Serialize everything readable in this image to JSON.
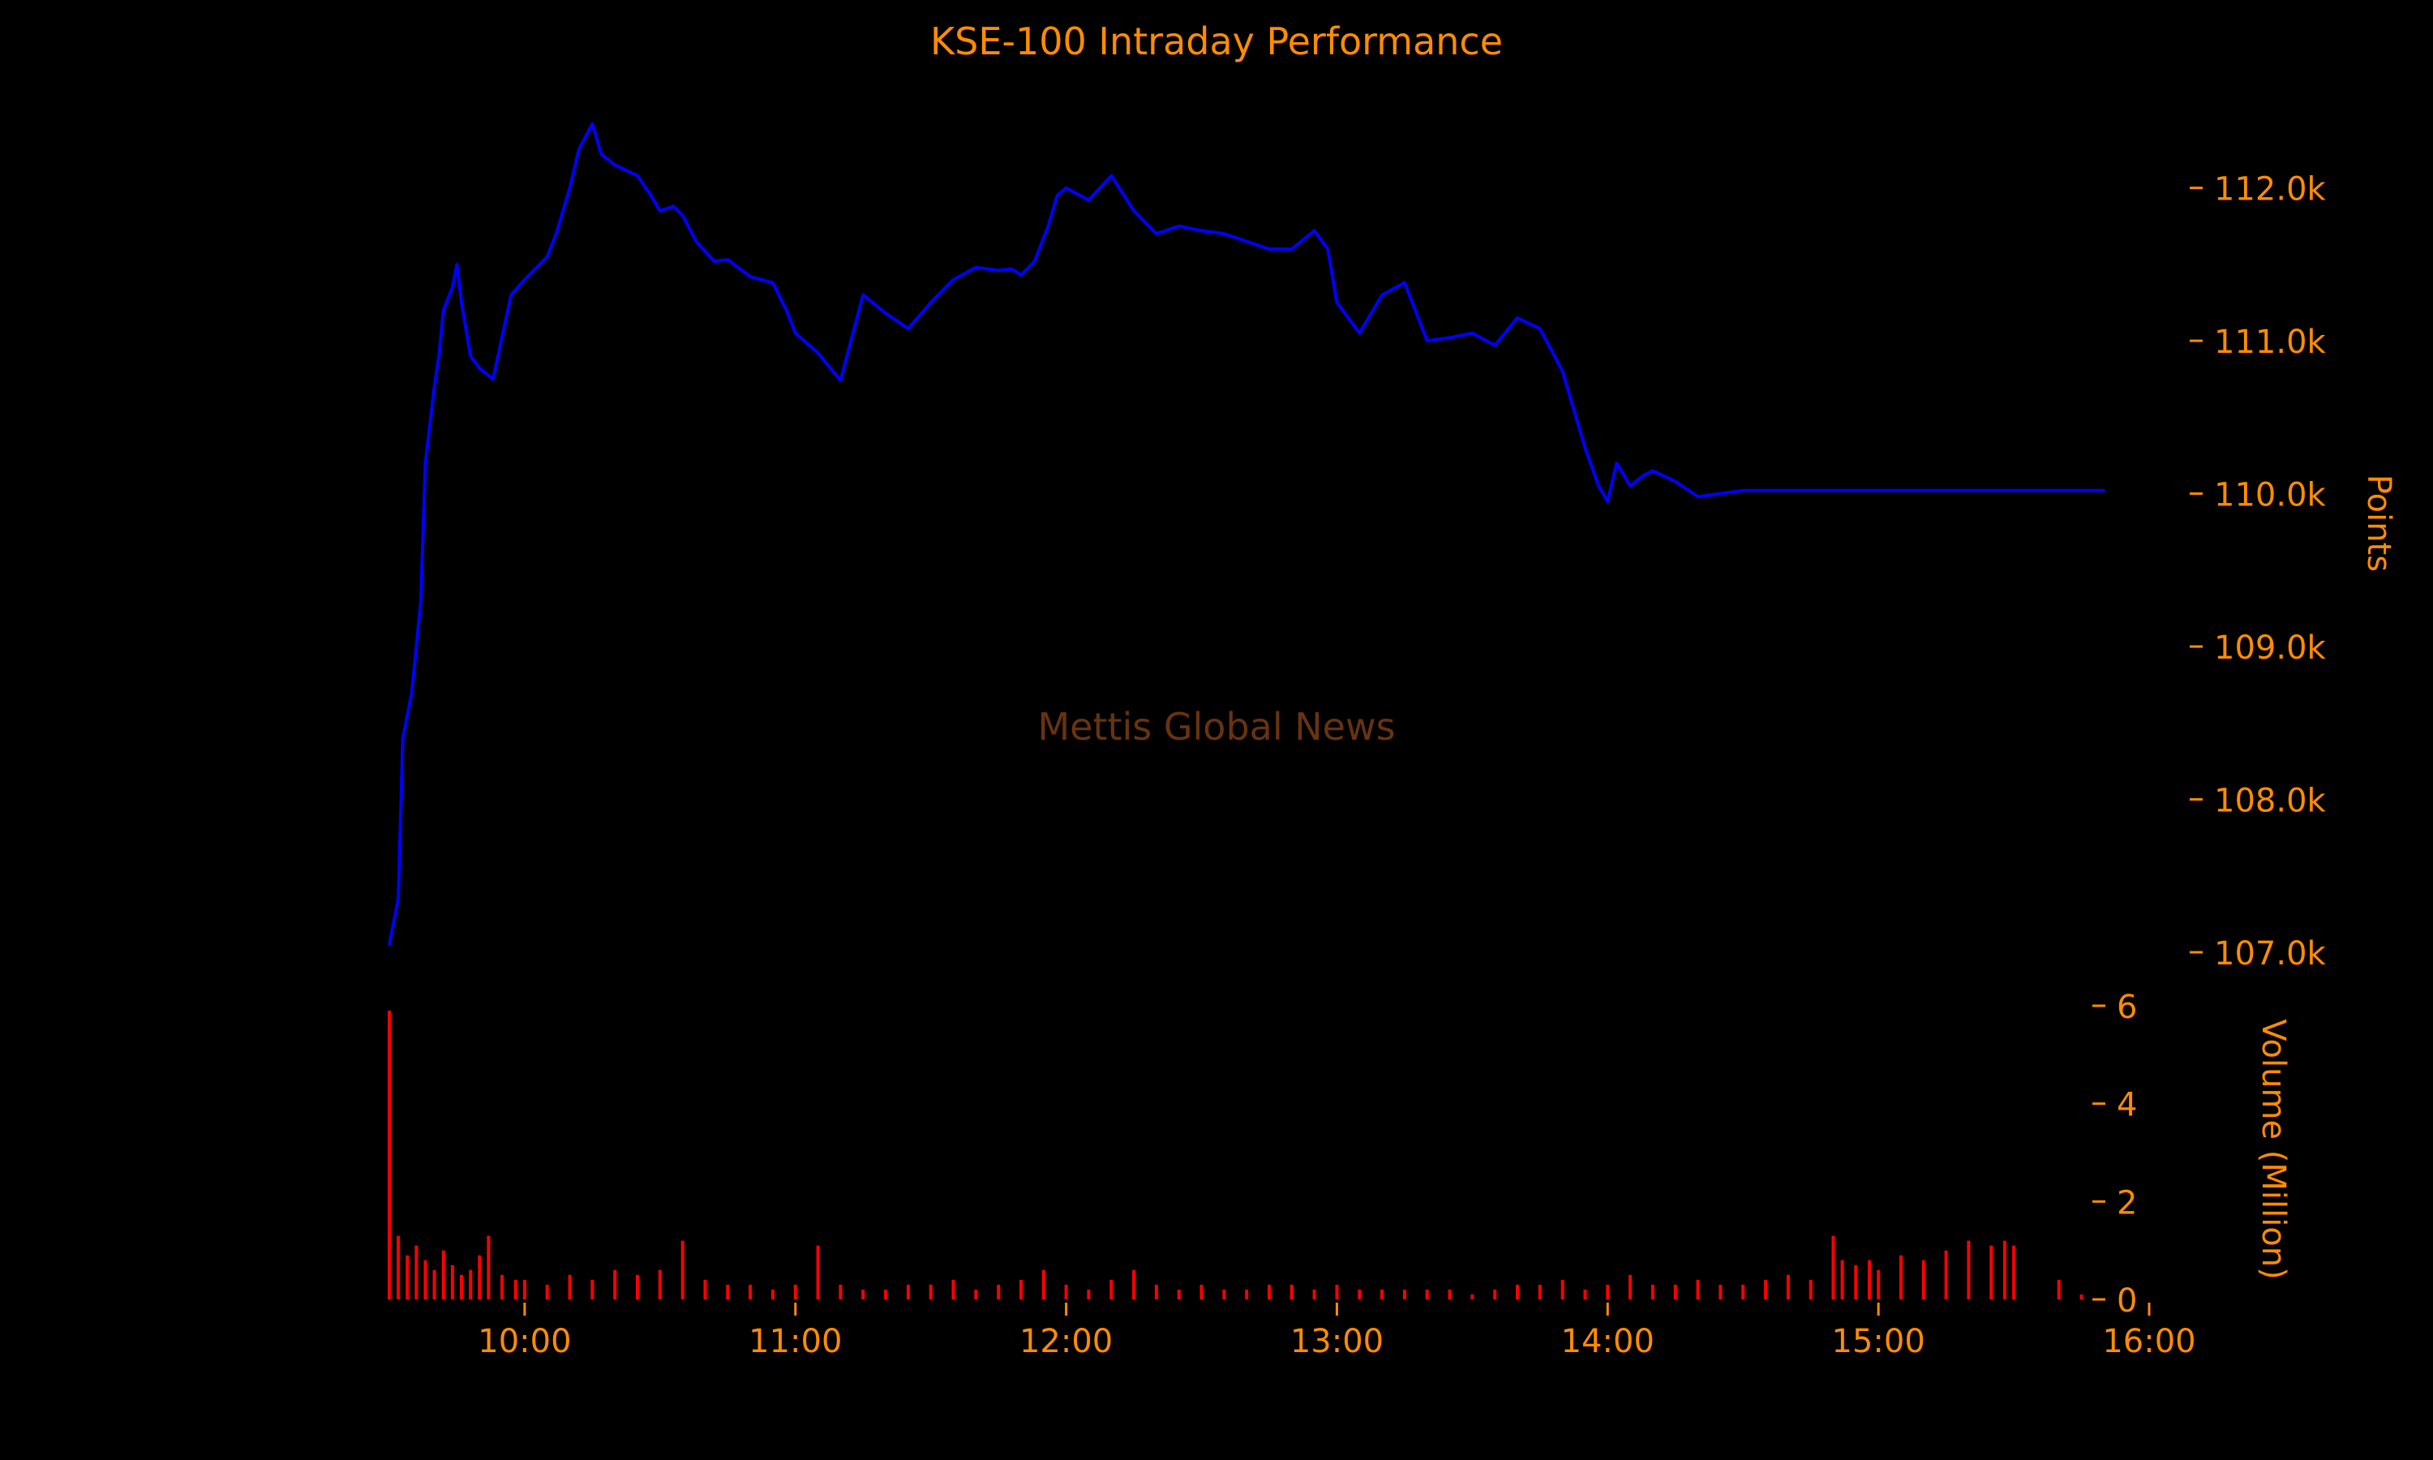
{
  "chart_data": [
    {
      "type": "line",
      "title": "KSE-100 Intraday Performance",
      "ylabel": "Points",
      "xlim": [
        "09:30",
        "16:00"
      ],
      "ylim": [
        106650,
        112550
      ],
      "yticks": [
        107000,
        108000,
        109000,
        110000,
        111000,
        112000
      ],
      "yticklabels": [
        "107.0k",
        "108.0k",
        "109.0k",
        "110.0k",
        "111.0k",
        "112.0k"
      ],
      "grid": false,
      "series": [
        {
          "color": "#0000ff",
          "x": [
            "09:30",
            "09:32",
            "09:33",
            "09:35",
            "09:37",
            "09:38",
            "09:40",
            "09:41",
            "09:42",
            "09:44",
            "09:45",
            "09:46",
            "09:48",
            "09:50",
            "09:53",
            "09:57",
            "10:00",
            "10:05",
            "10:07",
            "10:10",
            "10:12",
            "10:15",
            "10:17",
            "10:20",
            "10:25",
            "10:28",
            "10:30",
            "10:33",
            "10:35",
            "10:38",
            "10:42",
            "10:45",
            "10:50",
            "10:55",
            "10:58",
            "11:00",
            "11:05",
            "11:10",
            "11:15",
            "11:20",
            "11:25",
            "11:30",
            "11:35",
            "11:40",
            "11:45",
            "11:48",
            "11:50",
            "11:53",
            "11:56",
            "11:58",
            "12:00",
            "12:05",
            "12:10",
            "12:15",
            "12:20",
            "12:25",
            "12:30",
            "12:35",
            "12:40",
            "12:45",
            "12:50",
            "12:55",
            "12:58",
            "13:00",
            "13:05",
            "13:10",
            "13:15",
            "13:20",
            "13:25",
            "13:30",
            "13:35",
            "13:40",
            "13:45",
            "13:50",
            "13:55",
            "13:58",
            "14:00",
            "14:02",
            "14:05",
            "14:08",
            "14:10",
            "14:15",
            "14:20",
            "14:25",
            "14:30",
            "14:35",
            "14:40",
            "14:45",
            "14:48",
            "14:50",
            "14:52",
            "14:55",
            "14:58",
            "15:00",
            "15:05",
            "15:10",
            "15:15",
            "15:20",
            "15:25",
            "15:30",
            "15:40",
            "15:45",
            "15:50"
          ],
          "y": [
            107050,
            107350,
            108400,
            108700,
            109300,
            110200,
            110700,
            110900,
            111200,
            111350,
            111500,
            111250,
            110900,
            110820,
            110750,
            111300,
            111400,
            111550,
            111700,
            112000,
            112250,
            112420,
            112220,
            112150,
            112080,
            111950,
            111850,
            111880,
            111820,
            111650,
            111520,
            111530,
            111420,
            111380,
            111200,
            111050,
            110920,
            110740,
            111300,
            111180,
            111080,
            111250,
            111400,
            111480,
            111460,
            111470,
            111430,
            111520,
            111750,
            111950,
            112000,
            111920,
            112080,
            111850,
            111700,
            111750,
            111720,
            111700,
            111650,
            111600,
            111600,
            111720,
            111600,
            111250,
            111050,
            111300,
            111380,
            111000,
            111020,
            111050,
            110970,
            111150,
            111080,
            110800,
            110300,
            110050,
            109950,
            110200,
            110050,
            110120,
            110150,
            110080,
            109980,
            110000,
            110020,
            110020,
            110020,
            110020,
            110020,
            110020,
            110020,
            110020,
            110020,
            110020,
            110020,
            110020,
            110020,
            110020,
            110020,
            110020,
            110020,
            110020,
            110020
          ]
        }
      ],
      "annotations": [
        "Mettis Global News"
      ]
    },
    {
      "type": "bar",
      "ylabel": "Volume (Million)",
      "xlim": [
        "09:30",
        "16:00"
      ],
      "ylim": [
        0,
        6
      ],
      "yticks": [
        0,
        2,
        4,
        6
      ],
      "yticklabels": [
        "0",
        "2",
        "4",
        "6"
      ],
      "xticklabels": [
        "10:00",
        "11:00",
        "12:00",
        "13:00",
        "14:00",
        "15:00",
        "16:00"
      ],
      "grid": false,
      "series": [
        {
          "color": "#ff0000",
          "x": [
            "09:30",
            "09:32",
            "09:34",
            "09:36",
            "09:38",
            "09:40",
            "09:42",
            "09:44",
            "09:46",
            "09:48",
            "09:50",
            "09:52",
            "09:55",
            "09:58",
            "10:00",
            "10:05",
            "10:10",
            "10:15",
            "10:20",
            "10:25",
            "10:30",
            "10:35",
            "10:40",
            "10:45",
            "10:50",
            "10:55",
            "11:00",
            "11:05",
            "11:10",
            "11:15",
            "11:20",
            "11:25",
            "11:30",
            "11:35",
            "11:40",
            "11:45",
            "11:50",
            "11:55",
            "12:00",
            "12:05",
            "12:10",
            "12:15",
            "12:20",
            "12:25",
            "12:30",
            "12:35",
            "12:40",
            "12:45",
            "12:50",
            "12:55",
            "13:00",
            "13:05",
            "13:10",
            "13:15",
            "13:20",
            "13:25",
            "13:30",
            "13:35",
            "13:40",
            "13:45",
            "13:50",
            "13:55",
            "14:00",
            "14:05",
            "14:10",
            "14:15",
            "14:20",
            "14:25",
            "14:30",
            "14:35",
            "14:40",
            "14:45",
            "14:50",
            "14:52",
            "14:55",
            "14:58",
            "15:00",
            "15:05",
            "15:10",
            "15:15",
            "15:20",
            "15:25",
            "15:28",
            "15:30",
            "15:40",
            "15:45"
          ],
          "values": [
            5.9,
            1.3,
            0.9,
            1.1,
            0.8,
            0.6,
            1.0,
            0.7,
            0.5,
            0.6,
            0.9,
            1.3,
            0.5,
            0.4,
            0.4,
            0.3,
            0.5,
            0.4,
            0.6,
            0.5,
            0.6,
            1.2,
            0.4,
            0.3,
            0.3,
            0.2,
            0.3,
            1.1,
            0.3,
            0.2,
            0.2,
            0.3,
            0.3,
            0.4,
            0.2,
            0.3,
            0.4,
            0.6,
            0.3,
            0.2,
            0.4,
            0.6,
            0.3,
            0.2,
            0.3,
            0.2,
            0.2,
            0.3,
            0.3,
            0.2,
            0.3,
            0.2,
            0.2,
            0.2,
            0.2,
            0.2,
            0.1,
            0.2,
            0.3,
            0.3,
            0.4,
            0.2,
            0.3,
            0.5,
            0.3,
            0.3,
            0.4,
            0.3,
            0.3,
            0.4,
            0.5,
            0.4,
            1.3,
            0.8,
            0.7,
            0.8,
            0.6,
            0.9,
            0.8,
            1.0,
            1.2,
            1.1,
            1.2,
            1.1,
            0.4,
            0.1
          ]
        }
      ]
    }
  ]
}
